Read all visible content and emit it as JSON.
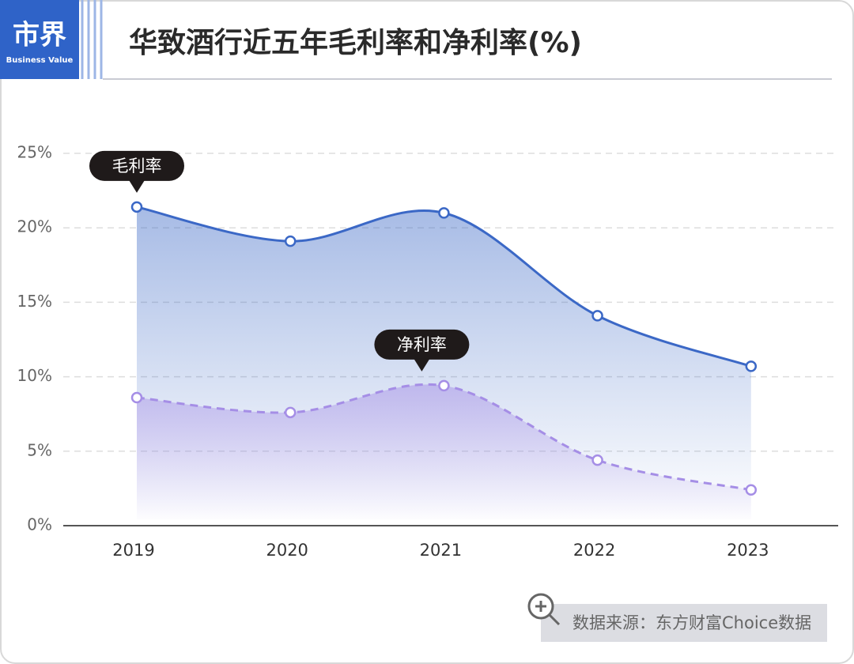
{
  "header": {
    "logo": "市界",
    "logo_sub": "Business Value",
    "title": "华致酒行近五年毛利率和净利率(%)"
  },
  "chart_data": {
    "type": "line",
    "area": true,
    "categories": [
      "2019",
      "2020",
      "2021",
      "2022",
      "2023"
    ],
    "series": [
      {
        "name": "毛利率",
        "color": "#3b68c6",
        "values": [
          21.4,
          19.1,
          21.0,
          14.1,
          10.7
        ]
      },
      {
        "name": "净利率",
        "color": "#a58ee6",
        "dashed": true,
        "values": [
          8.6,
          7.6,
          9.4,
          4.4,
          2.4
        ]
      }
    ],
    "ylim": [
      0,
      25
    ],
    "yticks": [
      {
        "value": 0,
        "label": "0%"
      },
      {
        "value": 5,
        "label": "5%"
      },
      {
        "value": 10,
        "label": "10%"
      },
      {
        "value": 15,
        "label": "15%"
      },
      {
        "value": 20,
        "label": "20%"
      },
      {
        "value": 25,
        "label": "25%"
      }
    ],
    "grid": true
  },
  "footer": {
    "source": "数据来源：东方财富Choice数据"
  }
}
